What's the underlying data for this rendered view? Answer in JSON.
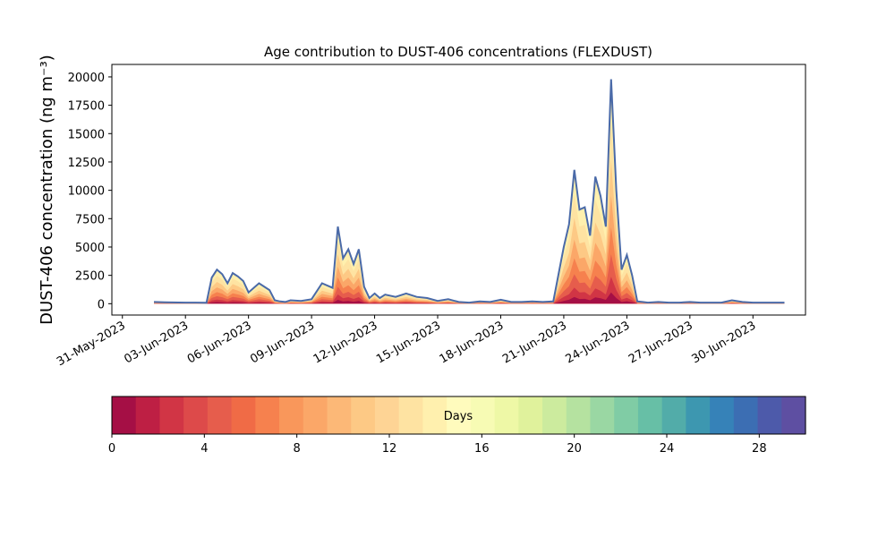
{
  "chart_data": {
    "type": "area",
    "title": "Age contribution to DUST-406 concentrations (FLEXDUST)",
    "ylabel": "DUST-406 concentration (ng m⁻³)",
    "xlabel": "",
    "x_type": "date",
    "xlim": [
      "2023-05-30T12:00",
      "2023-07-02T12:00"
    ],
    "ylim": [
      -1000,
      21100
    ],
    "grid": false,
    "legend": "none",
    "x_ticks": [
      "2023-05-31",
      "2023-06-03",
      "2023-06-06",
      "2023-06-09",
      "2023-06-12",
      "2023-06-15",
      "2023-06-18",
      "2023-06-21",
      "2023-06-24",
      "2023-06-27",
      "2023-06-30"
    ],
    "x_tick_labels": [
      "31-May-2023",
      "03-Jun-2023",
      "06-Jun-2023",
      "09-Jun-2023",
      "12-Jun-2023",
      "15-Jun-2023",
      "18-Jun-2023",
      "21-Jun-2023",
      "24-Jun-2023",
      "27-Jun-2023",
      "30-Jun-2023"
    ],
    "y_ticks": [
      0,
      2500,
      5000,
      7500,
      10000,
      12500,
      15000,
      17500,
      20000
    ],
    "y_tick_labels": [
      "0",
      "2500",
      "5000",
      "7500",
      "10000",
      "12500",
      "15000",
      "17500",
      "20000"
    ],
    "total_line_color": "#4a6aa8",
    "total_series": {
      "x": [
        "2023-06-01T12:00",
        "2023-06-02T00:00",
        "2023-06-03T00:00",
        "2023-06-03T12:00",
        "2023-06-04T00:00",
        "2023-06-04T06:00",
        "2023-06-04T12:00",
        "2023-06-04T18:00",
        "2023-06-05T00:00",
        "2023-06-05T06:00",
        "2023-06-05T12:00",
        "2023-06-05T18:00",
        "2023-06-06T00:00",
        "2023-06-06T12:00",
        "2023-06-07T00:00",
        "2023-06-07T06:00",
        "2023-06-07T12:00",
        "2023-06-07T18:00",
        "2023-06-08T00:00",
        "2023-06-08T12:00",
        "2023-06-09T00:00",
        "2023-06-09T12:00",
        "2023-06-10T00:00",
        "2023-06-10T06:00",
        "2023-06-10T12:00",
        "2023-06-10T18:00",
        "2023-06-11T00:00",
        "2023-06-11T06:00",
        "2023-06-11T12:00",
        "2023-06-11T18:00",
        "2023-06-12T00:00",
        "2023-06-12T06:00",
        "2023-06-12T12:00",
        "2023-06-13T00:00",
        "2023-06-13T12:00",
        "2023-06-14T00:00",
        "2023-06-14T12:00",
        "2023-06-15T00:00",
        "2023-06-15T12:00",
        "2023-06-16T00:00",
        "2023-06-16T12:00",
        "2023-06-17T00:00",
        "2023-06-17T12:00",
        "2023-06-18T00:00",
        "2023-06-18T12:00",
        "2023-06-19T00:00",
        "2023-06-19T12:00",
        "2023-06-20T00:00",
        "2023-06-20T12:00",
        "2023-06-21T00:00",
        "2023-06-21T06:00",
        "2023-06-21T12:00",
        "2023-06-21T18:00",
        "2023-06-22T00:00",
        "2023-06-22T06:00",
        "2023-06-22T12:00",
        "2023-06-22T18:00",
        "2023-06-23T00:00",
        "2023-06-23T06:00",
        "2023-06-23T12:00",
        "2023-06-23T18:00",
        "2023-06-24T00:00",
        "2023-06-24T06:00",
        "2023-06-24T12:00",
        "2023-06-24T18:00",
        "2023-06-25T00:00",
        "2023-06-25T12:00",
        "2023-06-26T00:00",
        "2023-06-26T12:00",
        "2023-06-27T00:00",
        "2023-06-27T12:00",
        "2023-06-28T00:00",
        "2023-06-28T12:00",
        "2023-06-29T00:00",
        "2023-06-29T12:00",
        "2023-06-30T00:00",
        "2023-06-30T12:00",
        "2023-07-01T00:00",
        "2023-07-01T12:00"
      ],
      "values": [
        150,
        120,
        100,
        100,
        80,
        2300,
        3000,
        2600,
        1800,
        2700,
        2400,
        2000,
        1000,
        1800,
        1200,
        300,
        200,
        150,
        300,
        250,
        400,
        1800,
        1400,
        6800,
        4000,
        4800,
        3500,
        4800,
        1500,
        500,
        900,
        500,
        800,
        600,
        900,
        600,
        500,
        250,
        400,
        150,
        100,
        200,
        150,
        350,
        150,
        150,
        200,
        150,
        200,
        5000,
        7000,
        11800,
        8300,
        8500,
        6000,
        11200,
        9500,
        6800,
        19800,
        10000,
        3000,
        4300,
        2500,
        200,
        150,
        100,
        150,
        100,
        100,
        150,
        100,
        100,
        100,
        300,
        150,
        100,
        100,
        100,
        100
      ]
    },
    "age_bands": {
      "label": "Days",
      "range": [
        0,
        30
      ],
      "ticks": [
        0,
        4,
        8,
        12,
        16,
        20,
        24,
        28
      ],
      "tick_labels": [
        "0",
        "4",
        "8",
        "12",
        "16",
        "20",
        "24",
        "28"
      ],
      "colors": [
        "#a50f45",
        "#be1f44",
        "#d13545",
        "#dd4a4a",
        "#e65d4c",
        "#f06b46",
        "#f6814e",
        "#f9975b",
        "#fba768",
        "#fcb877",
        "#fdc985",
        "#fed495",
        "#fee3a2",
        "#fff0ae",
        "#fffbbd",
        "#f7fbb4",
        "#eef8a6",
        "#e0f29c",
        "#cceb9e",
        "#b5e2a0",
        "#9ad7a3",
        "#80cca5",
        "#67bfa6",
        "#52aca9",
        "#3d97b0",
        "#3682b8",
        "#3c6eb3",
        "#4d5aaa",
        "#5e4fa2"
      ]
    }
  }
}
